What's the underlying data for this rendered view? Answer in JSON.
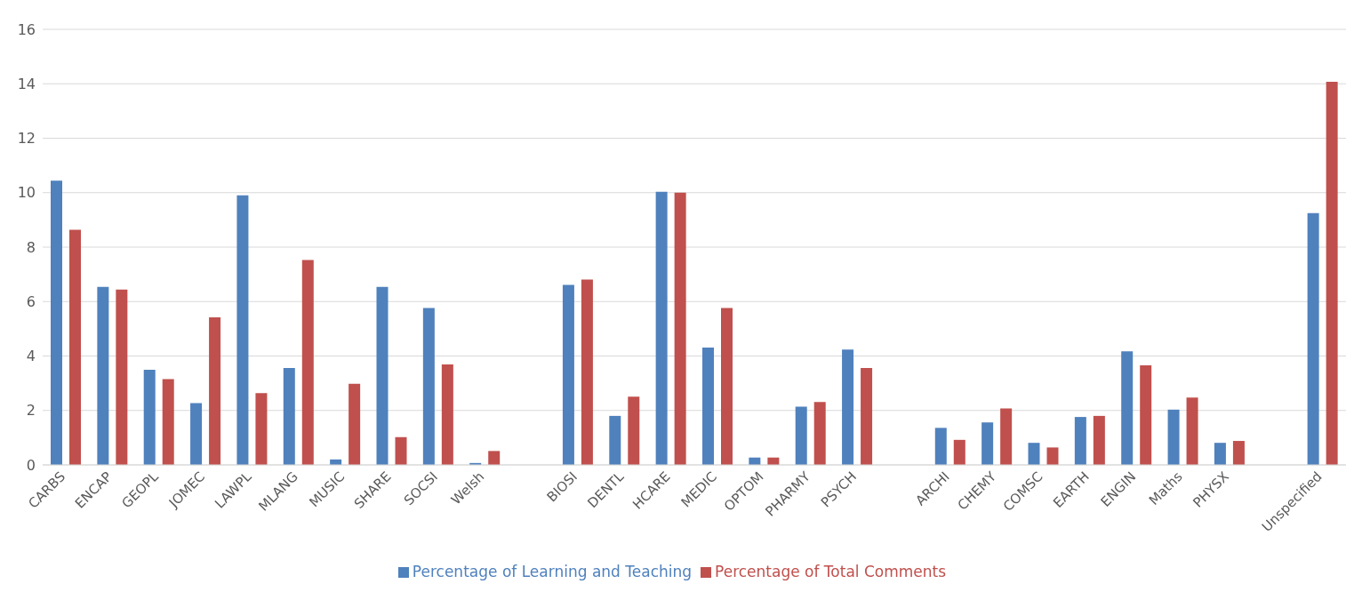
{
  "chart_data": {
    "type": "bar",
    "categories": [
      "CARBS",
      "ENCAP",
      "GEOPL",
      "JOMEC",
      "LAWPL",
      "MLANG",
      "MUSIC",
      "SHARE",
      "SOCSI",
      "Welsh",
      null,
      "BIOSI",
      "DENTL",
      "HCARE",
      "MEDIC",
      "OPTOM",
      "PHARMY",
      "PSYCH",
      null,
      "ARCHI",
      "CHEMY",
      "COMSC",
      "EARTH",
      "ENGIN",
      "Maths",
      "PHYSX",
      null,
      "Unspecified"
    ],
    "series": [
      {
        "name": "Percentage of Learning and Teaching",
        "color": "#4f81bd",
        "values": [
          10.44,
          6.54,
          3.49,
          2.27,
          9.9,
          3.56,
          0.2,
          6.54,
          5.76,
          0.07,
          null,
          6.61,
          1.8,
          10.03,
          4.31,
          0.27,
          2.14,
          4.24,
          null,
          1.36,
          1.56,
          0.81,
          1.76,
          4.17,
          2.03,
          0.81,
          null,
          9.25
        ]
      },
      {
        "name": "Percentage of Total Comments",
        "color": "#c0504d",
        "values": [
          8.64,
          6.44,
          3.15,
          5.42,
          2.64,
          7.53,
          2.98,
          1.02,
          3.69,
          0.51,
          null,
          6.81,
          2.51,
          10.0,
          5.76,
          0.27,
          2.31,
          3.56,
          null,
          0.92,
          2.07,
          0.64,
          1.8,
          3.66,
          2.47,
          0.88,
          null,
          14.07
        ]
      }
    ],
    "ylim": [
      0,
      16
    ],
    "yticks": [
      0,
      2,
      4,
      6,
      8,
      10,
      12,
      14,
      16
    ],
    "grid": "y",
    "legend": "bottom"
  }
}
